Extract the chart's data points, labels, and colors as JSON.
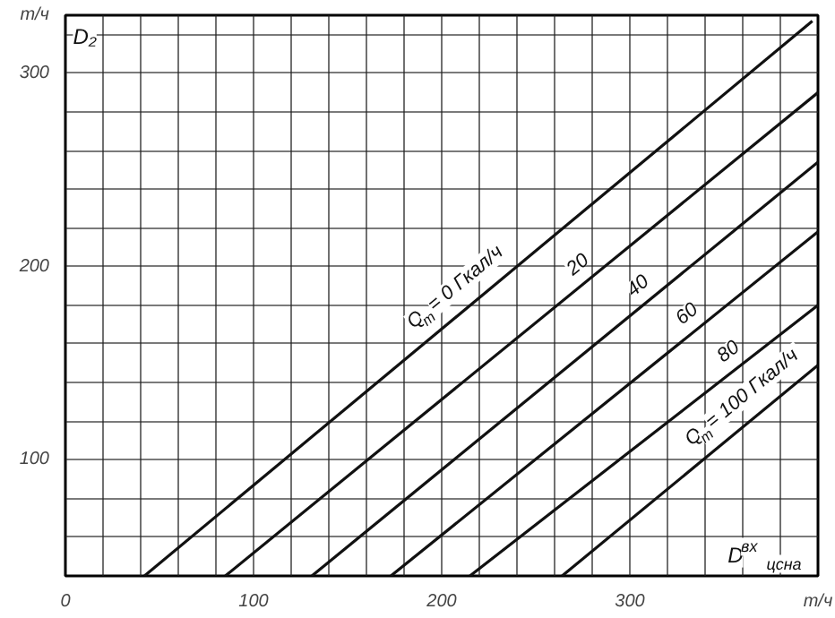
{
  "chart_data": {
    "type": "line",
    "ylabel": "D₂",
    "xlabel": "D$^{вх}$$_{цсна}$",
    "xlim": [
      0,
      400
    ],
    "ylim": [
      40,
      330
    ],
    "xticks": [
      0,
      {
        "value": 20,
        "label": null
      },
      {
        "value": 40,
        "label": null
      },
      {
        "value": 60,
        "label": null
      },
      {
        "value": 80,
        "label": null
      },
      100,
      {
        "value": 120,
        "label": null
      },
      {
        "value": 140,
        "label": null
      },
      {
        "value": 160,
        "label": null
      },
      {
        "value": 180,
        "label": null
      },
      200,
      {
        "value": 220,
        "label": null
      },
      {
        "value": 240,
        "label": null
      },
      {
        "value": 260,
        "label": null
      },
      {
        "value": 280,
        "label": null
      },
      300,
      {
        "value": 320,
        "label": null
      },
      {
        "value": 340,
        "label": null
      },
      {
        "value": 360,
        "label": null
      },
      {
        "value": 380,
        "label": null
      },
      {
        "value": 400,
        "label": "т/ч"
      }
    ],
    "yticks": [
      {
        "value": 40,
        "label": null
      },
      {
        "value": 60,
        "label": null
      },
      {
        "value": 80,
        "label": null
      },
      100,
      {
        "value": 120,
        "label": null
      },
      {
        "value": 140,
        "label": null
      },
      {
        "value": 160,
        "label": null
      },
      {
        "value": 180,
        "label": null
      },
      200,
      {
        "value": 220,
        "label": null
      },
      {
        "value": 240,
        "label": null
      },
      {
        "value": 260,
        "label": null
      },
      {
        "value": 280,
        "label": null
      },
      300,
      {
        "value": 320,
        "label": null
      },
      {
        "value": 330,
        "label": "т/ч"
      }
    ],
    "grid": true,
    "legend": false,
    "line_style": "solid",
    "marker": "none",
    "series": [
      {
        "name": "Q$_{т}$ = 0 Гкал/ч",
        "color": "#111111",
        "x": [
          42,
          397
        ],
        "values": [
          40,
          327
        ]
      },
      {
        "name": "20",
        "color": "#111111",
        "x": [
          85,
          400
        ],
        "values": [
          40,
          290
        ]
      },
      {
        "name": "40",
        "color": "#111111",
        "x": [
          131,
          400
        ],
        "values": [
          40,
          254
        ]
      },
      {
        "name": "60",
        "color": "#111111",
        "x": [
          173,
          400
        ],
        "values": [
          40,
          218
        ]
      },
      {
        "name": "80",
        "color": "#111111",
        "x": [
          215,
          400
        ],
        "values": [
          40,
          180
        ]
      },
      {
        "name": "Q$_{т}$ = 100 Гкал/ч",
        "color": "#111111",
        "x": [
          264,
          400
        ],
        "values": [
          40,
          149
        ]
      }
    ]
  }
}
